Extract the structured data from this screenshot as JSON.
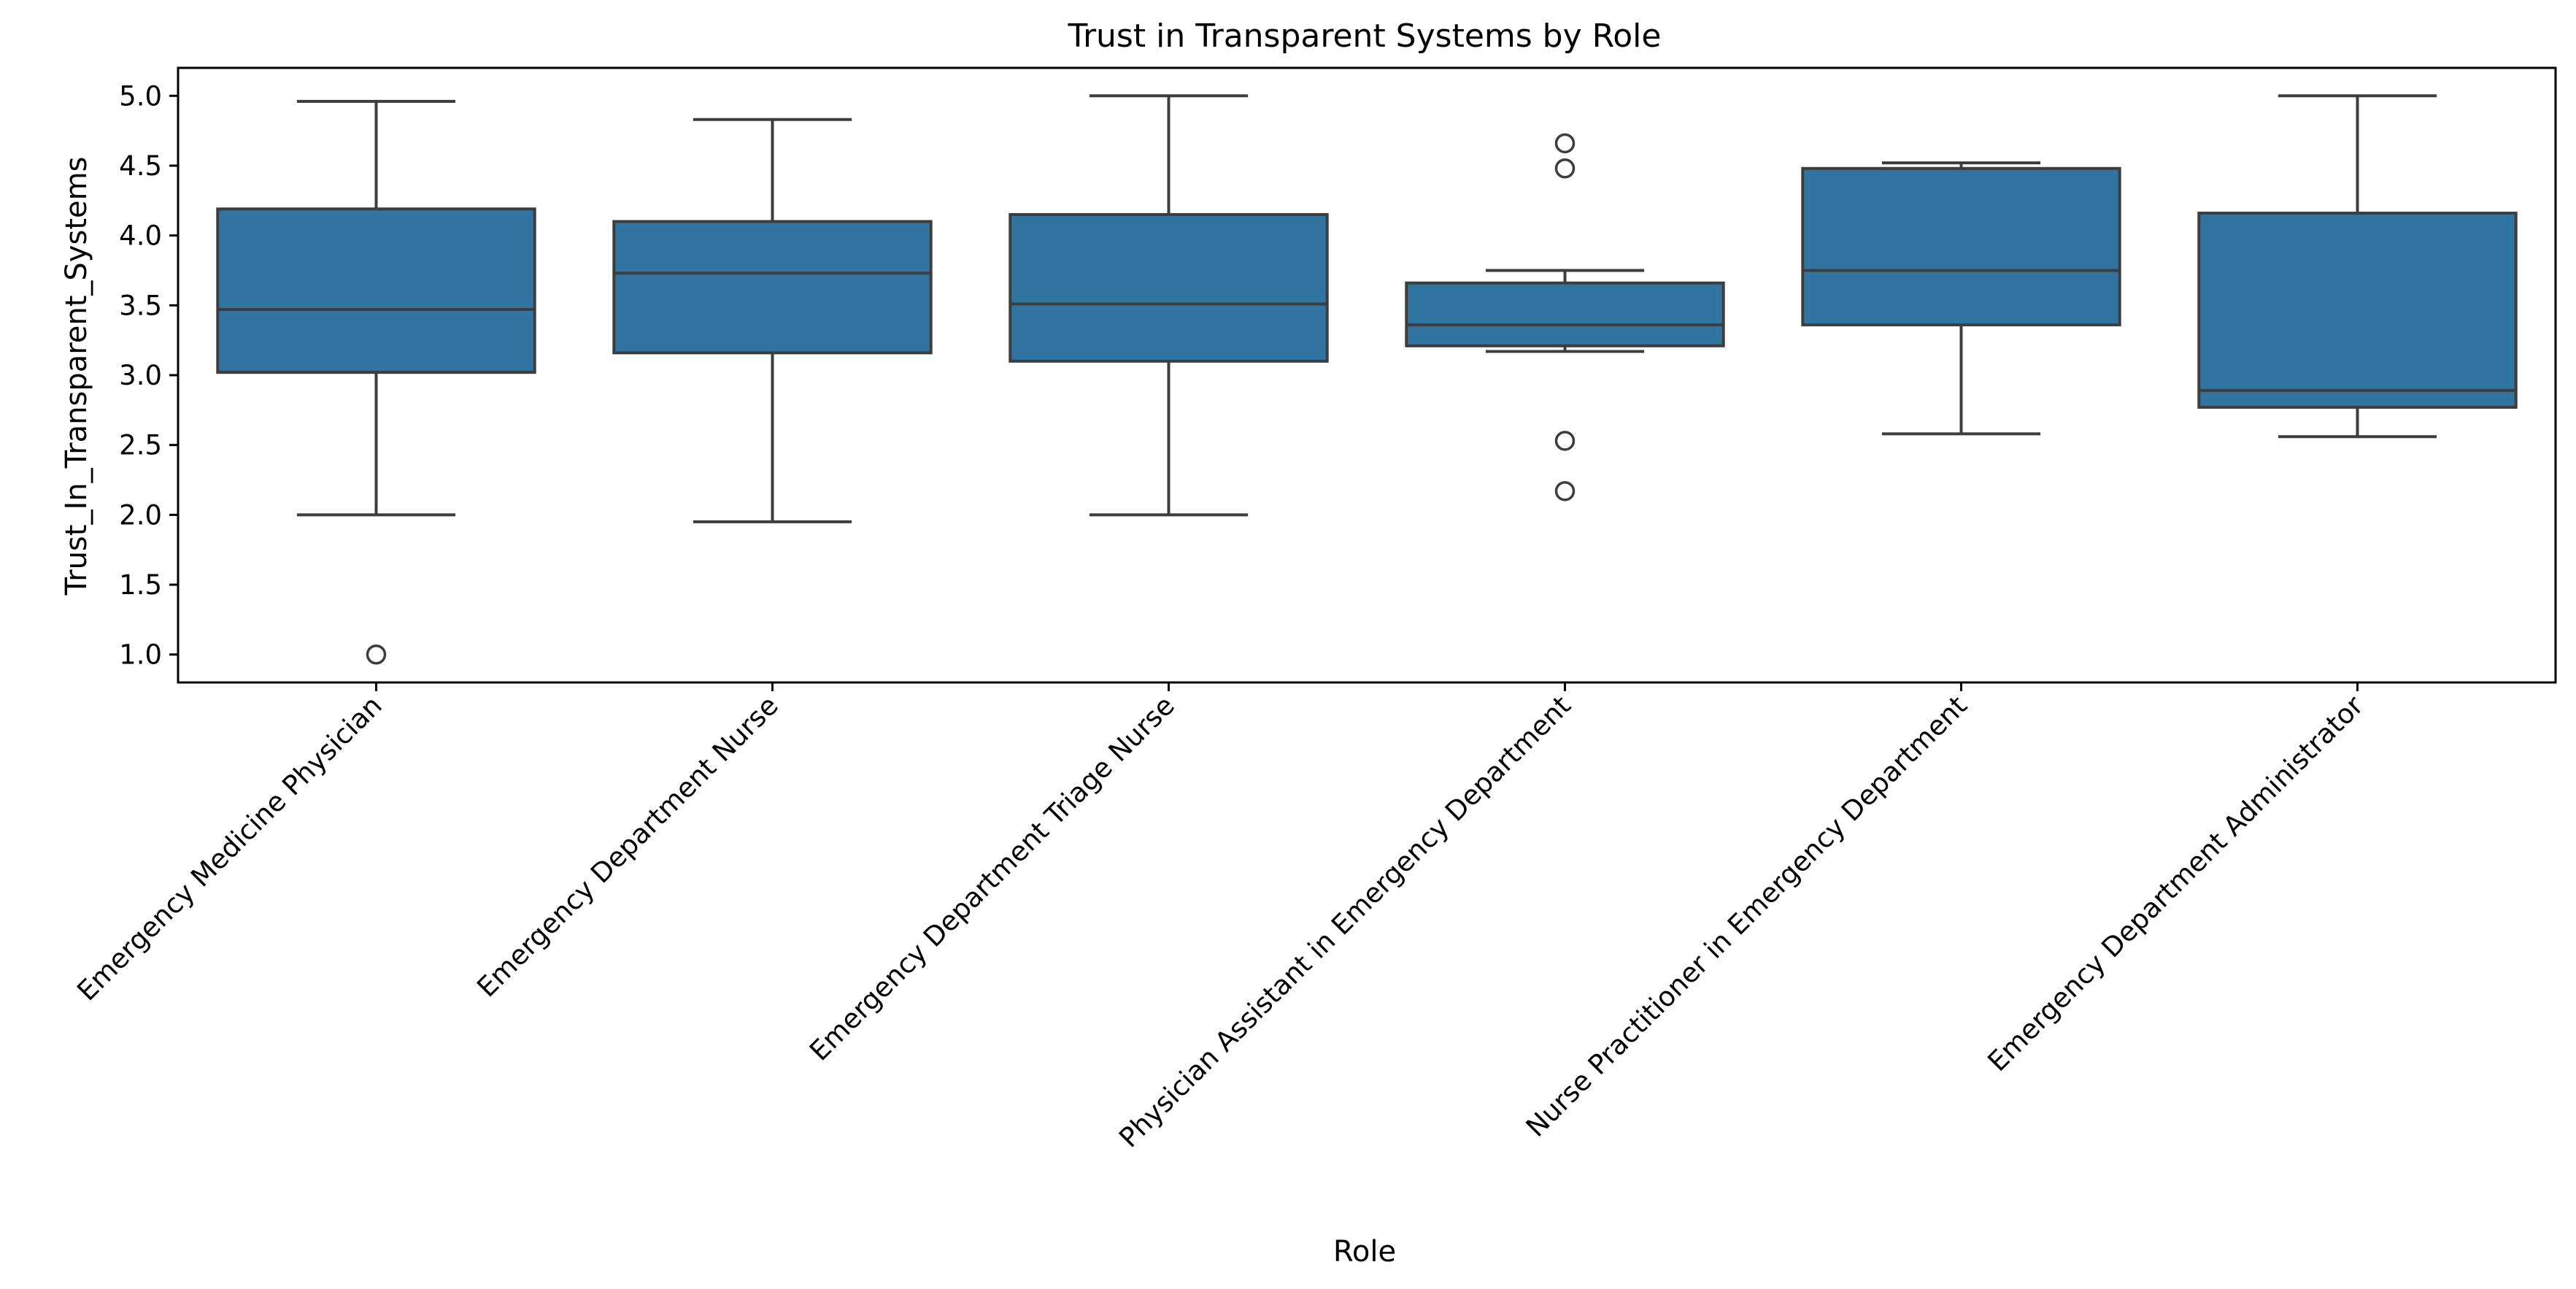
{
  "chart_data": {
    "type": "box",
    "title": "Trust in Transparent Systems by Role",
    "xlabel": "Role",
    "ylabel": "Trust_In_Transparent_Systems",
    "ylim": [
      0.8,
      5.2
    ],
    "yticks": [
      1.0,
      1.5,
      2.0,
      2.5,
      3.0,
      3.5,
      4.0,
      4.5,
      5.0
    ],
    "ytick_labels": [
      "1.0",
      "1.5",
      "2.0",
      "2.5",
      "3.0",
      "3.5",
      "4.0",
      "4.5",
      "5.0"
    ],
    "grid": false,
    "box_color": "#3274a1",
    "line_color": "#3d3d3d",
    "categories": [
      "Emergency Medicine Physician",
      "Emergency Department Nurse",
      "Emergency Department Triage Nurse",
      "Physician Assistant in Emergency Department",
      "Nurse Practitioner in Emergency Department",
      "Emergency Department Administrator"
    ],
    "boxes": [
      {
        "whisker_low": 2.0,
        "q1": 3.02,
        "median": 3.47,
        "q3": 4.19,
        "whisker_high": 4.96,
        "outliers": [
          1.0
        ]
      },
      {
        "whisker_low": 1.95,
        "q1": 3.16,
        "median": 3.73,
        "q3": 4.1,
        "whisker_high": 4.83,
        "outliers": []
      },
      {
        "whisker_low": 2.0,
        "q1": 3.1,
        "median": 3.51,
        "q3": 4.15,
        "whisker_high": 5.0,
        "outliers": []
      },
      {
        "whisker_low": 3.17,
        "q1": 3.21,
        "median": 3.36,
        "q3": 3.66,
        "whisker_high": 3.75,
        "outliers": [
          4.66,
          4.48,
          2.53,
          2.17
        ]
      },
      {
        "whisker_low": 2.58,
        "q1": 3.36,
        "median": 3.75,
        "q3": 4.48,
        "whisker_high": 4.52,
        "outliers": []
      },
      {
        "whisker_low": 2.56,
        "q1": 2.77,
        "median": 2.89,
        "q3": 4.16,
        "whisker_high": 5.0,
        "outliers": []
      }
    ]
  }
}
